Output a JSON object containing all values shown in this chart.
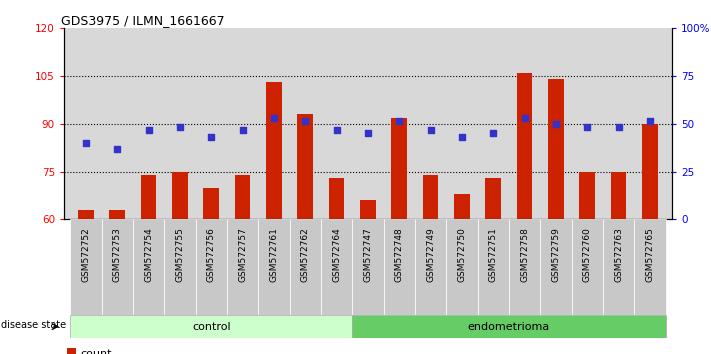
{
  "title": "GDS3975 / ILMN_1661667",
  "samples": [
    "GSM572752",
    "GSM572753",
    "GSM572754",
    "GSM572755",
    "GSM572756",
    "GSM572757",
    "GSM572761",
    "GSM572762",
    "GSM572764",
    "GSM572747",
    "GSM572748",
    "GSM572749",
    "GSM572750",
    "GSM572751",
    "GSM572758",
    "GSM572759",
    "GSM572760",
    "GSM572763",
    "GSM572765"
  ],
  "counts": [
    63,
    63,
    74,
    75,
    70,
    74,
    103,
    93,
    73,
    66,
    92,
    74,
    68,
    73,
    106,
    104,
    75,
    75,
    90
  ],
  "blue_left": [
    84,
    82,
    88,
    89,
    86,
    88,
    92,
    91,
    88,
    87,
    91,
    88,
    86,
    87,
    92,
    90,
    89,
    89,
    91
  ],
  "n_control": 9,
  "n_endo": 10,
  "ylim_left": [
    60,
    120
  ],
  "ylim_right": [
    0,
    100
  ],
  "yticks_left": [
    60,
    75,
    90,
    105,
    120
  ],
  "yticks_right": [
    0,
    25,
    50,
    75,
    100
  ],
  "ytick_labels_right": [
    "0",
    "25",
    "50",
    "75",
    "100%"
  ],
  "bar_color": "#cc2200",
  "dot_color": "#3333cc",
  "control_color": "#ccffcc",
  "endometrioma_color": "#66cc66",
  "plot_bg_color": "#d8d8d8",
  "xtick_bg_color": "#c8c8c8",
  "bar_width": 0.5,
  "grid_dotted_color": "#000000"
}
